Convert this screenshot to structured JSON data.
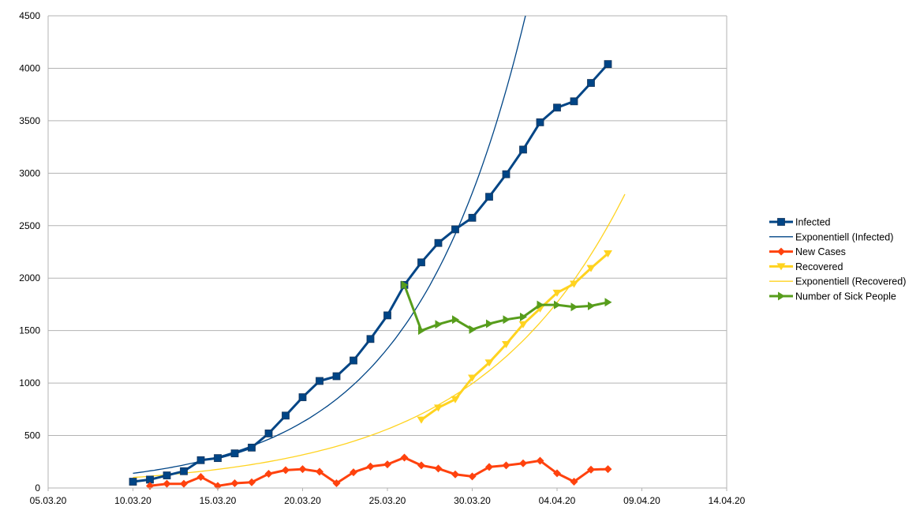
{
  "chart_data": {
    "type": "line",
    "title": "",
    "xlabel": "",
    "ylabel": "",
    "x_axis": {
      "type": "date",
      "min": "2020-03-05",
      "max": "2020-04-14",
      "tick_labels": [
        "05.03.20",
        "10.03.20",
        "15.03.20",
        "20.03.20",
        "25.03.20",
        "30.03.20",
        "04.04.20",
        "09.04.20",
        "14.04.20"
      ]
    },
    "y_axis": {
      "min": 0,
      "max": 4500,
      "tick_labels": [
        "0",
        "500",
        "1000",
        "1500",
        "2000",
        "2500",
        "3000",
        "3500",
        "4000",
        "4500"
      ]
    },
    "grid": {
      "horizontal": true,
      "vertical": false
    },
    "legend_position": "right",
    "series": [
      {
        "name": "Infected",
        "color": "#004586",
        "marker": "square",
        "start_date": "2020-03-10",
        "values": [
          60,
          80,
          120,
          160,
          265,
          285,
          330,
          385,
          520,
          690,
          865,
          1020,
          1065,
          1215,
          1420,
          1645,
          1935,
          2150,
          2335,
          2465,
          2575,
          2775,
          2990,
          3225,
          3485,
          3625,
          3685,
          3860,
          4040
        ]
      },
      {
        "name": "Exponentiell (Infected)",
        "color": "#004586",
        "type": "trendline",
        "x_range": [
          "2020-03-10",
          "2020-04-04"
        ],
        "values": [
          [
            "2020-03-10",
            140
          ],
          [
            "2020-04-04",
            5950
          ]
        ]
      },
      {
        "name": "New Cases",
        "color": "#ff420e",
        "marker": "diamond",
        "start_date": "2020-03-11",
        "values": [
          20,
          40,
          40,
          105,
          20,
          45,
          55,
          135,
          170,
          180,
          155,
          45,
          150,
          205,
          225,
          290,
          215,
          185,
          130,
          110,
          200,
          215,
          235,
          260,
          140,
          60,
          175,
          180
        ]
      },
      {
        "name": "Recovered",
        "color": "#ffd320",
        "marker": "triangle-down",
        "start_date": "2020-03-27",
        "values": [
          650,
          765,
          845,
          1050,
          1195,
          1370,
          1560,
          1710,
          1860,
          1945,
          2095,
          2235
        ]
      },
      {
        "name": "Exponentiell (Recovered)",
        "color": "#ffd320",
        "type": "trendline",
        "x_range": [
          "2020-03-10",
          "2020-04-08"
        ],
        "values": [
          [
            "2020-03-10",
            100
          ],
          [
            "2020-04-08",
            2800
          ]
        ]
      },
      {
        "name": "Number of Sick People",
        "color": "#579d1c",
        "marker": "triangle-right",
        "start_date": "2020-03-26",
        "values": [
          1935,
          1500,
          1560,
          1605,
          1510,
          1565,
          1605,
          1630,
          1745,
          1745,
          1725,
          1735,
          1770
        ]
      }
    ]
  }
}
